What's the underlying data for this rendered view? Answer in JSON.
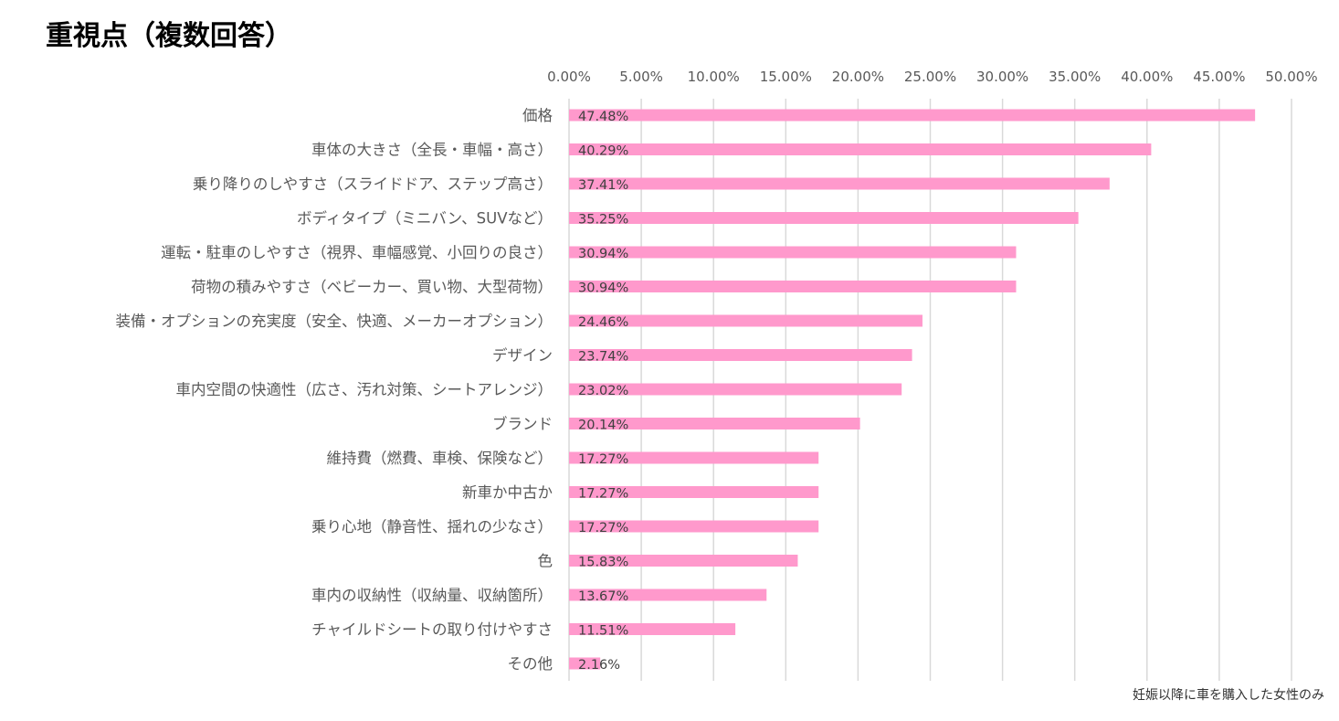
{
  "title": "重視点（複数回答）",
  "note": "妊娠以降に車を購入した女性のみ",
  "colors": {
    "bar": "#ff99cc",
    "grid": "#d9d9d9",
    "label": "#595959",
    "value": "#404040"
  },
  "chart_data": {
    "type": "bar",
    "orientation": "horizontal",
    "title": "重視点（複数回答）",
    "xlim": [
      0,
      50
    ],
    "tick_values": [
      0,
      5,
      10,
      15,
      20,
      25,
      30,
      35,
      40,
      45,
      50
    ],
    "tick_labels": [
      "0.00%",
      "5.00%",
      "10.00%",
      "15.00%",
      "20.00%",
      "25.00%",
      "30.00%",
      "35.00%",
      "40.00%",
      "45.00%",
      "50.00%"
    ],
    "axis_position": "top",
    "grid": true,
    "categories": [
      "価格",
      "車体の大きさ（全長・車幅・高さ）",
      "乗り降りのしやすさ（スライドドア、ステップ高さ）",
      "ボディタイプ（ミニバン、SUVなど）",
      "運転・駐車のしやすさ（視界、車幅感覚、小回りの良さ）",
      "荷物の積みやすさ（ベビーカー、買い物、大型荷物）",
      "装備・オプションの充実度（安全、快適、メーカーオプション）",
      "デザイン",
      "車内空間の快適性（広さ、汚れ対策、シートアレンジ）",
      "ブランド",
      "維持費（燃費、車検、保険など）",
      "新車か中古か",
      "乗り心地（静音性、揺れの少なさ）",
      "色",
      "車内の収納性（収納量、収納箇所）",
      "チャイルドシートの取り付けやすさ",
      "その他"
    ],
    "values": [
      47.48,
      40.29,
      37.41,
      35.25,
      30.94,
      30.94,
      24.46,
      23.74,
      23.02,
      20.14,
      17.27,
      17.27,
      17.27,
      15.83,
      13.67,
      11.51,
      2.16
    ],
    "value_labels": [
      "47.48%",
      "40.29%",
      "37.41%",
      "35.25%",
      "30.94%",
      "30.94%",
      "24.46%",
      "23.74%",
      "23.02%",
      "20.14%",
      "17.27%",
      "17.27%",
      "17.27%",
      "15.83%",
      "13.67%",
      "11.51%",
      "2.16%"
    ]
  }
}
